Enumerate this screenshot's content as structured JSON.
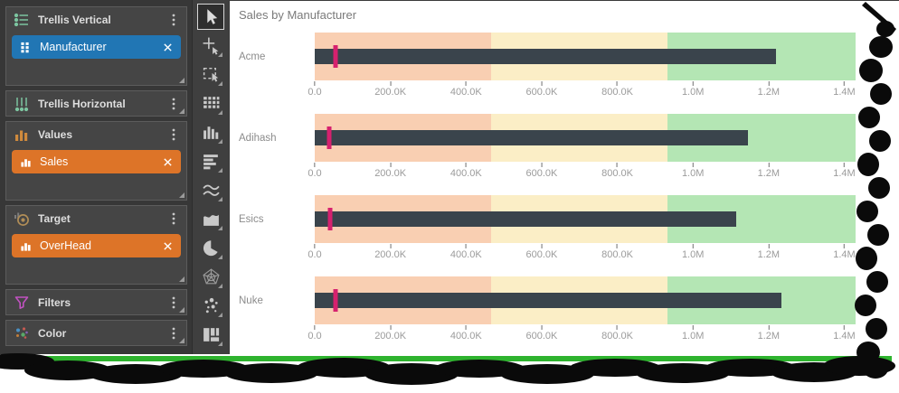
{
  "window": {
    "bottom_accent_color": "#2eb32e"
  },
  "sidebar": {
    "sections": [
      {
        "id": "trellis-vertical",
        "label": "Trellis Vertical",
        "icon": "trellis-vertical-icon",
        "size": "tall",
        "chips": [
          {
            "id": "manufacturer",
            "label": "Manufacturer",
            "color": "#2176b4",
            "icon": "grid"
          }
        ]
      },
      {
        "id": "trellis-horizontal",
        "label": "Trellis Horizontal",
        "icon": "trellis-horizontal-icon",
        "size": "short",
        "chips": []
      },
      {
        "id": "values",
        "label": "Values",
        "icon": "values-icon",
        "size": "tall",
        "chips": [
          {
            "id": "sales",
            "label": "Sales",
            "color": "#dd7428",
            "icon": "bars"
          }
        ]
      },
      {
        "id": "target",
        "label": "Target",
        "icon": "target-icon",
        "size": "tall",
        "chips": [
          {
            "id": "overhead",
            "label": "OverHead",
            "color": "#dd7428",
            "icon": "bars"
          }
        ]
      },
      {
        "id": "filters",
        "label": "Filters",
        "icon": "filters-icon",
        "size": "short",
        "chips": []
      },
      {
        "id": "color",
        "label": "Color",
        "icon": "color-icon",
        "size": "short",
        "chips": []
      }
    ]
  },
  "toolbar": {
    "tools": [
      {
        "id": "select",
        "selected": true,
        "has_dropdown": false
      },
      {
        "id": "point-select",
        "selected": false,
        "has_dropdown": true
      },
      {
        "id": "marquee-select",
        "selected": false,
        "has_dropdown": true
      },
      {
        "id": "data-grid",
        "selected": false,
        "has_dropdown": true
      },
      {
        "id": "column-chart",
        "selected": false,
        "has_dropdown": true
      },
      {
        "id": "bar-chart",
        "selected": false,
        "has_dropdown": true
      },
      {
        "id": "line-chart",
        "selected": false,
        "has_dropdown": true
      },
      {
        "id": "area-chart",
        "selected": false,
        "has_dropdown": true
      },
      {
        "id": "pie-chart",
        "selected": false,
        "has_dropdown": true
      },
      {
        "id": "radar-chart",
        "selected": false,
        "has_dropdown": true
      },
      {
        "id": "scatter-chart",
        "selected": false,
        "has_dropdown": true
      },
      {
        "id": "treemap",
        "selected": false,
        "has_dropdown": true
      }
    ]
  },
  "chart": {
    "title": "Sales by Manufacturer"
  },
  "chart_data": {
    "type": "bullet",
    "orientation": "horizontal",
    "title": "Sales by Manufacturer",
    "categories": [
      "Acme",
      "Adihash",
      "Esics",
      "Nuke"
    ],
    "series": [
      {
        "name": "Sales",
        "role": "measure",
        "values": [
          1220000,
          1145000,
          1115000,
          1235000
        ]
      },
      {
        "name": "OverHead",
        "role": "target",
        "values": [
          55000,
          38000,
          40000,
          55000
        ]
      }
    ],
    "x_axis": {
      "min": 0,
      "max": 1430000,
      "tick_values": [
        0,
        200000,
        400000,
        600000,
        800000,
        1000000,
        1200000,
        1400000
      ],
      "tick_labels": [
        "0.0",
        "200.0K",
        "400.0K",
        "600.0K",
        "800.0K",
        "1.0M",
        "1.2M",
        "1.4M"
      ]
    },
    "bands": [
      {
        "label": "low",
        "from": 0,
        "to": 466667,
        "color": "#f9cfb2"
      },
      {
        "label": "mid",
        "from": 466667,
        "to": 933333,
        "color": "#fbeec6"
      },
      {
        "label": "high",
        "from": 933333,
        "to": 1430000,
        "color": "#b4e6b4"
      }
    ],
    "bar_color": "#3a444c",
    "target_color": "#d6216e",
    "grid": false,
    "legend": false
  }
}
